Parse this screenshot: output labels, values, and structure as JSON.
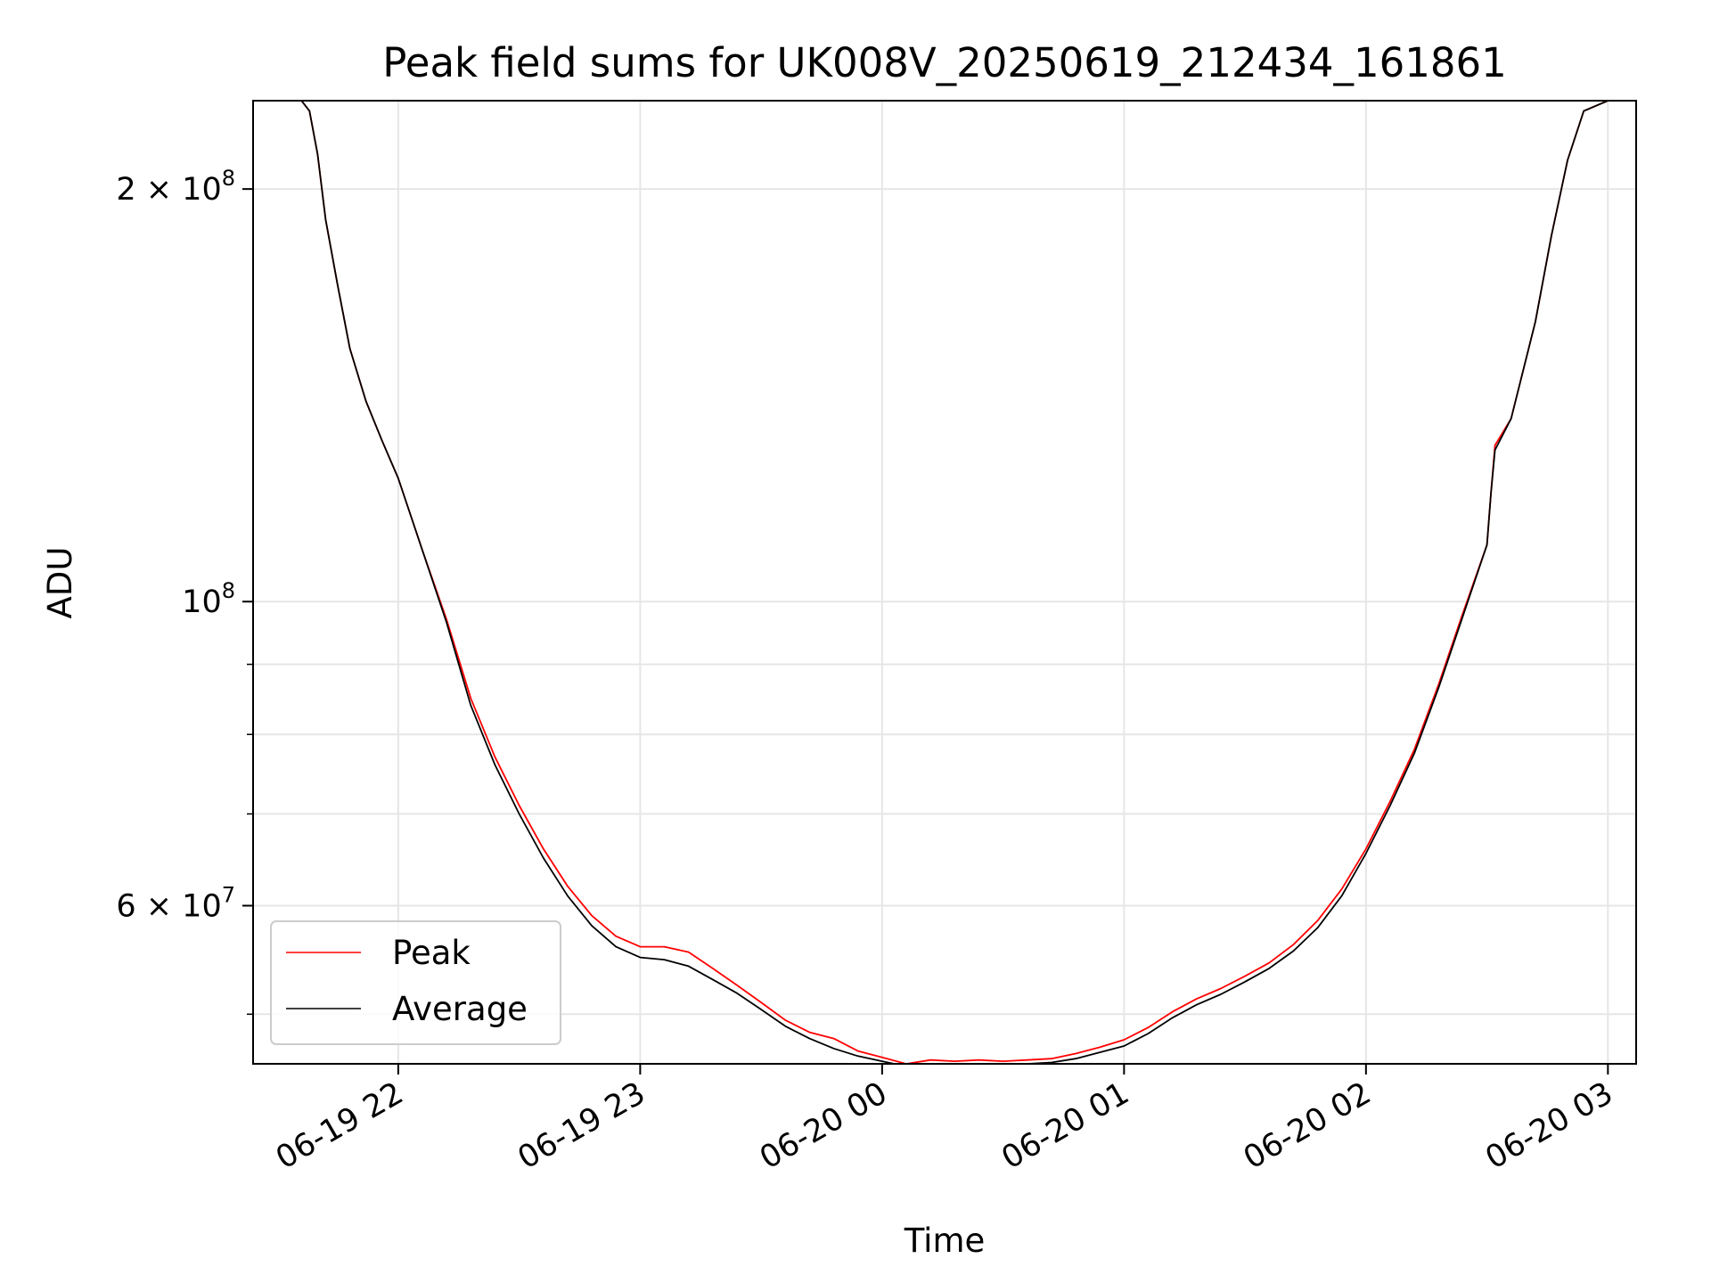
{
  "chart_data": {
    "type": "line",
    "title": "Peak field sums for UK008V_20250619_212434_161861",
    "xlabel": "Time",
    "ylabel": "ADU",
    "y_scale": "log",
    "ylim": [
      46000000,
      232000000
    ],
    "xlim": [
      "2025-06-19 21:24",
      "2025-06-20 03:07"
    ],
    "grid": true,
    "legend_position": "lower-left",
    "x_ticks": [
      {
        "value": "2025-06-19 22:00",
        "label": "06-19 22"
      },
      {
        "value": "2025-06-19 23:00",
        "label": "06-19 23"
      },
      {
        "value": "2025-06-20 00:00",
        "label": "06-20 00"
      },
      {
        "value": "2025-06-20 01:00",
        "label": "06-20 01"
      },
      {
        "value": "2025-06-20 02:00",
        "label": "06-20 02"
      },
      {
        "value": "2025-06-20 03:00",
        "label": "06-20 03"
      }
    ],
    "y_major_ticks": [
      {
        "value": 100000000,
        "base": "10",
        "exp": "8"
      },
      {
        "value": 200000000,
        "base": "2 × 10",
        "exp": "8"
      },
      {
        "value": 60000000,
        "base": "6 × 10",
        "exp": "7"
      }
    ],
    "y_minor_ticks": [
      50000000,
      70000000,
      80000000,
      90000000
    ],
    "series": [
      {
        "name": "Peak",
        "color": "#ff0000",
        "x": [
          "2025-06-19 21:24",
          "2025-06-19 21:36",
          "2025-06-19 21:38",
          "2025-06-19 21:40",
          "2025-06-19 21:42",
          "2025-06-19 21:45",
          "2025-06-19 21:48",
          "2025-06-19 21:52",
          "2025-06-19 21:56",
          "2025-06-19 22:00",
          "2025-06-19 22:06",
          "2025-06-19 22:12",
          "2025-06-19 22:18",
          "2025-06-19 22:24",
          "2025-06-19 22:30",
          "2025-06-19 22:36",
          "2025-06-19 22:42",
          "2025-06-19 22:48",
          "2025-06-19 22:54",
          "2025-06-19 23:00",
          "2025-06-19 23:06",
          "2025-06-19 23:12",
          "2025-06-19 23:18",
          "2025-06-19 23:24",
          "2025-06-19 23:30",
          "2025-06-19 23:36",
          "2025-06-19 23:42",
          "2025-06-19 23:48",
          "2025-06-19 23:54",
          "2025-06-20 00:00",
          "2025-06-20 00:06",
          "2025-06-20 00:12",
          "2025-06-20 00:18",
          "2025-06-20 00:24",
          "2025-06-20 00:30",
          "2025-06-20 00:36",
          "2025-06-20 00:42",
          "2025-06-20 00:48",
          "2025-06-20 00:54",
          "2025-06-20 01:00",
          "2025-06-20 01:06",
          "2025-06-20 01:12",
          "2025-06-20 01:18",
          "2025-06-20 01:24",
          "2025-06-20 01:30",
          "2025-06-20 01:36",
          "2025-06-20 01:42",
          "2025-06-20 01:48",
          "2025-06-20 01:54",
          "2025-06-20 02:00",
          "2025-06-20 02:06",
          "2025-06-20 02:12",
          "2025-06-20 02:18",
          "2025-06-20 02:24",
          "2025-06-20 02:30",
          "2025-06-20 02:31",
          "2025-06-20 02:32",
          "2025-06-20 02:36",
          "2025-06-20 02:42",
          "2025-06-20 02:46",
          "2025-06-20 02:50",
          "2025-06-20 02:54",
          "2025-06-20 03:00",
          "2025-06-20 03:07"
        ],
        "values": [
          232000000,
          232000000,
          228000000,
          212000000,
          190000000,
          170000000,
          153000000,
          140000000,
          131000000,
          123000000,
          109000000,
          97000000,
          85000000,
          77000000,
          71000000,
          66000000,
          62000000,
          59000000,
          57000000,
          56000000,
          56000000,
          55500000,
          54000000,
          52500000,
          51000000,
          49500000,
          48500000,
          48000000,
          47000000,
          46500000,
          46000000,
          46300000,
          46200000,
          46300000,
          46200000,
          46300000,
          46400000,
          46800000,
          47300000,
          47900000,
          48900000,
          50200000,
          51300000,
          52200000,
          53300000,
          54500000,
          56200000,
          58500000,
          61700000,
          66000000,
          71500000,
          78000000,
          87000000,
          98000000,
          110000000,
          120000000,
          130000000,
          136000000,
          160000000,
          185000000,
          210000000,
          228000000,
          232000000,
          232000000
        ]
      },
      {
        "name": "Average",
        "color": "#000000",
        "x": [
          "2025-06-19 21:24",
          "2025-06-19 21:36",
          "2025-06-19 21:38",
          "2025-06-19 21:40",
          "2025-06-19 21:42",
          "2025-06-19 21:45",
          "2025-06-19 21:48",
          "2025-06-19 21:52",
          "2025-06-19 21:56",
          "2025-06-19 22:00",
          "2025-06-19 22:06",
          "2025-06-19 22:12",
          "2025-06-19 22:18",
          "2025-06-19 22:24",
          "2025-06-19 22:30",
          "2025-06-19 22:36",
          "2025-06-19 22:42",
          "2025-06-19 22:48",
          "2025-06-19 22:54",
          "2025-06-19 23:00",
          "2025-06-19 23:06",
          "2025-06-19 23:12",
          "2025-06-19 23:18",
          "2025-06-19 23:24",
          "2025-06-19 23:30",
          "2025-06-19 23:36",
          "2025-06-19 23:42",
          "2025-06-19 23:48",
          "2025-06-19 23:54",
          "2025-06-20 00:00",
          "2025-06-20 00:06",
          "2025-06-20 00:12",
          "2025-06-20 00:18",
          "2025-06-20 00:24",
          "2025-06-20 00:30",
          "2025-06-20 00:36",
          "2025-06-20 00:42",
          "2025-06-20 00:48",
          "2025-06-20 00:54",
          "2025-06-20 01:00",
          "2025-06-20 01:06",
          "2025-06-20 01:12",
          "2025-06-20 01:18",
          "2025-06-20 01:24",
          "2025-06-20 01:30",
          "2025-06-20 01:36",
          "2025-06-20 01:42",
          "2025-06-20 01:48",
          "2025-06-20 01:54",
          "2025-06-20 02:00",
          "2025-06-20 02:06",
          "2025-06-20 02:12",
          "2025-06-20 02:18",
          "2025-06-20 02:24",
          "2025-06-20 02:30",
          "2025-06-20 02:31",
          "2025-06-20 02:32",
          "2025-06-20 02:36",
          "2025-06-20 02:42",
          "2025-06-20 02:46",
          "2025-06-20 02:50",
          "2025-06-20 02:54",
          "2025-06-20 03:00",
          "2025-06-20 03:07"
        ],
        "values": [
          232000000,
          232000000,
          228000000,
          212000000,
          190000000,
          170000000,
          153000000,
          140000000,
          131000000,
          123000000,
          109000000,
          96500000,
          84000000,
          76000000,
          70000000,
          65000000,
          61000000,
          58000000,
          56000000,
          55000000,
          54800000,
          54200000,
          53000000,
          51800000,
          50400000,
          49000000,
          48000000,
          47200000,
          46600000,
          46200000,
          45800000,
          46000000,
          46000000,
          46000000,
          46000000,
          46000000,
          46100000,
          46400000,
          46900000,
          47400000,
          48400000,
          49700000,
          50800000,
          51700000,
          52800000,
          54000000,
          55600000,
          57800000,
          61000000,
          65500000,
          71000000,
          77500000,
          86500000,
          97500000,
          110000000,
          120000000,
          129000000,
          136000000,
          160000000,
          185000000,
          210000000,
          228000000,
          232000000,
          232000000
        ]
      }
    ]
  }
}
